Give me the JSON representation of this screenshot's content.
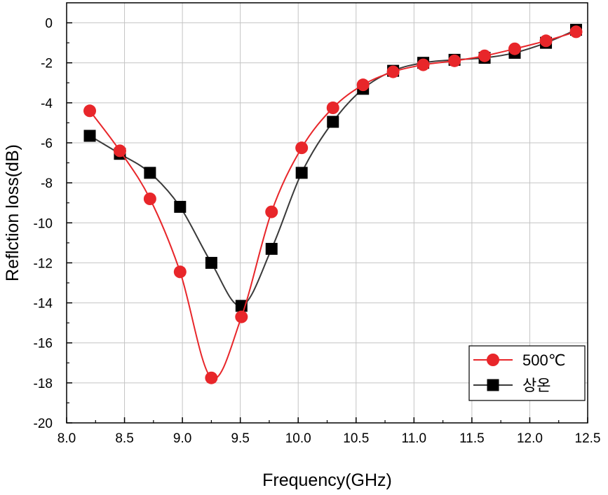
{
  "chart_data": {
    "type": "line",
    "title": "",
    "xlabel": "Frequency(GHz)",
    "ylabel": "Reflction loss(dB)",
    "xlim": [
      8.0,
      12.5
    ],
    "ylim": [
      -20,
      1
    ],
    "xticks": [
      8.0,
      8.5,
      9.0,
      9.5,
      10.0,
      10.5,
      11.0,
      11.5,
      12.0,
      12.5
    ],
    "xtick_labels": [
      "8.0",
      "8.5",
      "9.0",
      "9.5",
      "10.0",
      "10.5",
      "11.0",
      "11.5",
      "12.0",
      "12.5"
    ],
    "yticks": [
      0,
      -2,
      -4,
      -6,
      -8,
      -10,
      -12,
      -14,
      -16,
      -18,
      -20
    ],
    "ytick_labels": [
      "0",
      "-2",
      "-4",
      "-6",
      "-8",
      "-10",
      "-12",
      "-14",
      "-16",
      "-18",
      "-20"
    ],
    "grid": true,
    "legend_position": "bottom-right",
    "series": [
      {
        "name": "500℃",
        "color": "#e8262a",
        "marker": "circle",
        "x": [
          8.2,
          8.46,
          8.72,
          8.98,
          9.25,
          9.51,
          9.77,
          10.03,
          10.3,
          10.56,
          10.82,
          11.08,
          11.35,
          11.61,
          11.87,
          12.14,
          12.4
        ],
        "y": [
          -4.4,
          -6.4,
          -8.8,
          -12.45,
          -17.75,
          -14.7,
          -9.45,
          -6.25,
          -4.25,
          -3.1,
          -2.45,
          -2.1,
          -1.9,
          -1.65,
          -1.3,
          -0.9,
          -0.45
        ]
      },
      {
        "name": "상온",
        "color": "#000000",
        "line_color": "#3a3a3a",
        "marker": "square",
        "x": [
          8.2,
          8.46,
          8.72,
          8.98,
          9.25,
          9.51,
          9.77,
          10.03,
          10.3,
          10.56,
          10.82,
          11.08,
          11.35,
          11.61,
          11.87,
          12.14,
          12.4
        ],
        "y": [
          -5.65,
          -6.55,
          -7.5,
          -9.2,
          -12.0,
          -14.15,
          -11.3,
          -7.5,
          -4.95,
          -3.3,
          -2.4,
          -2.0,
          -1.85,
          -1.75,
          -1.5,
          -1.0,
          -0.35
        ]
      }
    ]
  }
}
